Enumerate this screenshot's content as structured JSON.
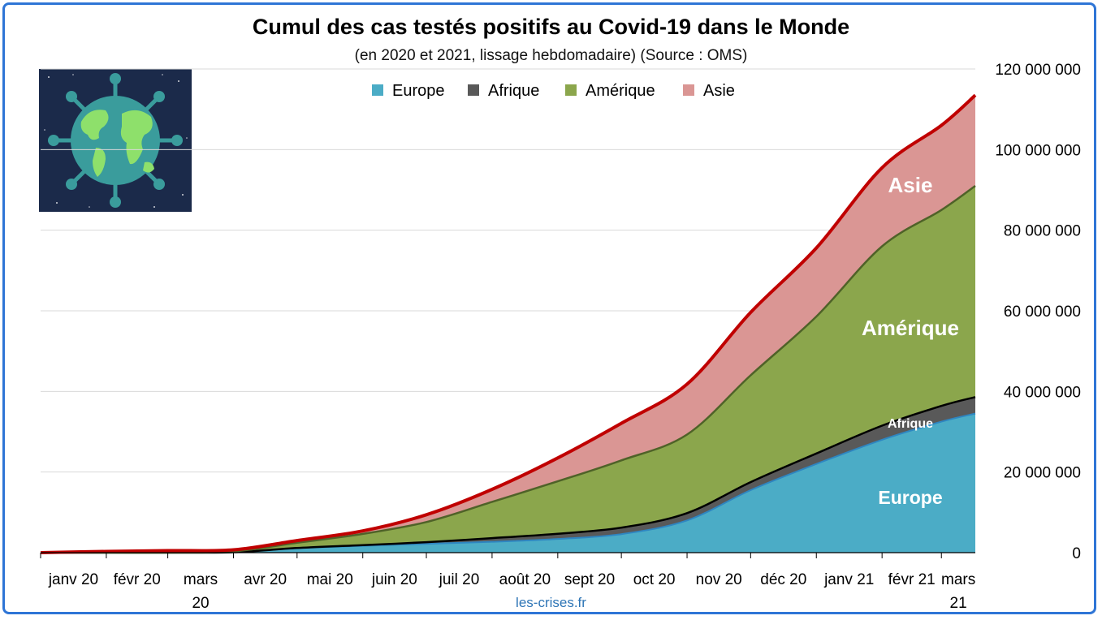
{
  "title": "Cumul des cas testés positifs au Covid-19 dans le Monde",
  "subtitle": "(en 2020 et 2021, lissage hebdomadaire) (Source : OMS)",
  "source": "les-crises.fr",
  "colors": {
    "europe": "#4BACC6",
    "afrique": "#595959",
    "amerique": "#8BA64C",
    "asie": "#DA9694",
    "total_line": "#C00000",
    "frame": "#2E75D6"
  },
  "chart_data": {
    "type": "area",
    "stacked": true,
    "title": "Cumul des cas testés positifs au Covid-19 dans le Monde",
    "subtitle": "(en 2020 et 2021, lissage hebdomadaire) (Source : OMS)",
    "x_tick_labels": [
      "janv 20",
      "févr 20",
      "mars 20",
      "avr 20",
      "mai 20",
      "juin 20",
      "juil 20",
      "août 20",
      "sept 20",
      "oct 20",
      "nov 20",
      "déc 20",
      "janv 21",
      "févr 21",
      "mars 21"
    ],
    "x": [
      "2020-01-01",
      "2020-02-01",
      "2020-03-01",
      "2020-04-01",
      "2020-05-01",
      "2020-06-01",
      "2020-07-01",
      "2020-08-01",
      "2020-09-01",
      "2020-10-01",
      "2020-11-01",
      "2020-12-01",
      "2021-01-01",
      "2021-02-01",
      "2021-03-01",
      "2021-03-17"
    ],
    "series": [
      {
        "name": "Europe",
        "values": [
          0,
          0,
          0,
          100000,
          1100000,
          1700000,
          2200000,
          2700000,
          3400000,
          4600000,
          8000000,
          15500000,
          22000000,
          28000000,
          32500000,
          34500000
        ]
      },
      {
        "name": "Afrique",
        "values": [
          0,
          0,
          0,
          5000,
          50000,
          150000,
          400000,
          900000,
          1300000,
          1600000,
          1800000,
          2000000,
          2600000,
          3500000,
          3900000,
          4100000
        ]
      },
      {
        "name": "Amérique",
        "values": [
          0,
          0,
          10000,
          200000,
          1300000,
          2800000,
          5000000,
          9000000,
          13000000,
          16700000,
          19500000,
          26500000,
          34000000,
          44500000,
          48600000,
          52400000
        ]
      },
      {
        "name": "Asie",
        "values": [
          0,
          300000,
          500000,
          400000,
          550000,
          750000,
          1800000,
          3100000,
          5800000,
          9200000,
          12500000,
          15600000,
          17000000,
          19500000,
          21000000,
          22500000
        ]
      }
    ],
    "ylim": [
      0,
      120000000
    ],
    "y_ticks": [
      0,
      20000000,
      40000000,
      60000000,
      80000000,
      100000000,
      120000000
    ],
    "y_tick_labels": [
      "0",
      "20 000 000",
      "40 000 000",
      "60 000 000",
      "80 000 000",
      "100 000 000",
      "120 000 000"
    ],
    "y_axis_side": "right",
    "legend": [
      "Europe",
      "Afrique",
      "Amérique",
      "Asie"
    ],
    "legend_position": "top-center",
    "grid": true,
    "area_labels": [
      "Europe",
      "Afrique",
      "Amérique",
      "Asie"
    ]
  }
}
